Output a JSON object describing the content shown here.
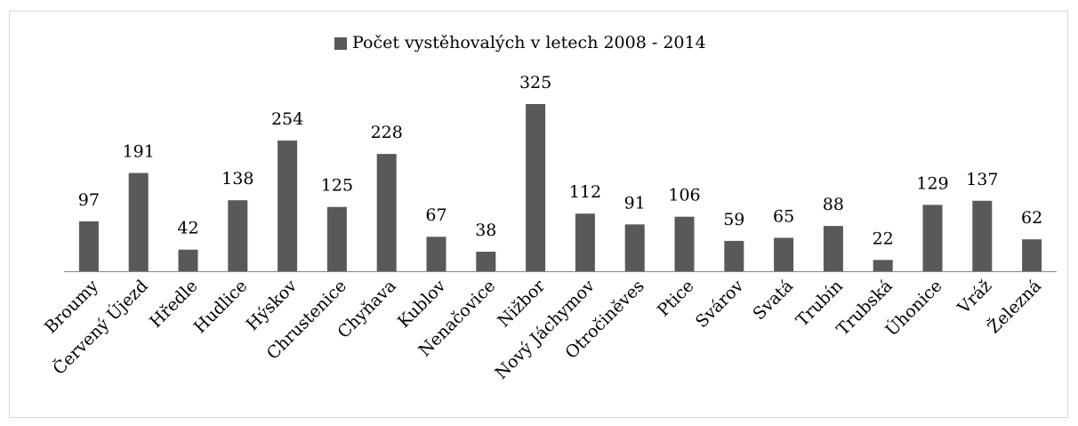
{
  "chart_data": {
    "type": "bar",
    "legend": "Počet vystěhovalých v letech 2008 - 2014",
    "color": "#595959",
    "categories": [
      "Broumy",
      "Červený Újezd",
      "Hředle",
      "Hudlice",
      "Hýskov",
      "Chrustenice",
      "Chyňava",
      "Kublov",
      "Nenačovice",
      "Nižbor",
      "Nový Jáchymov",
      "Otročiněves",
      "Ptice",
      "Svárov",
      "Svatá",
      "Trubín",
      "Trubská",
      "Úhonice",
      "Vráž",
      "Železná"
    ],
    "values": [
      97,
      191,
      42,
      138,
      254,
      125,
      228,
      67,
      38,
      325,
      112,
      91,
      106,
      59,
      65,
      88,
      22,
      129,
      137,
      62
    ]
  }
}
